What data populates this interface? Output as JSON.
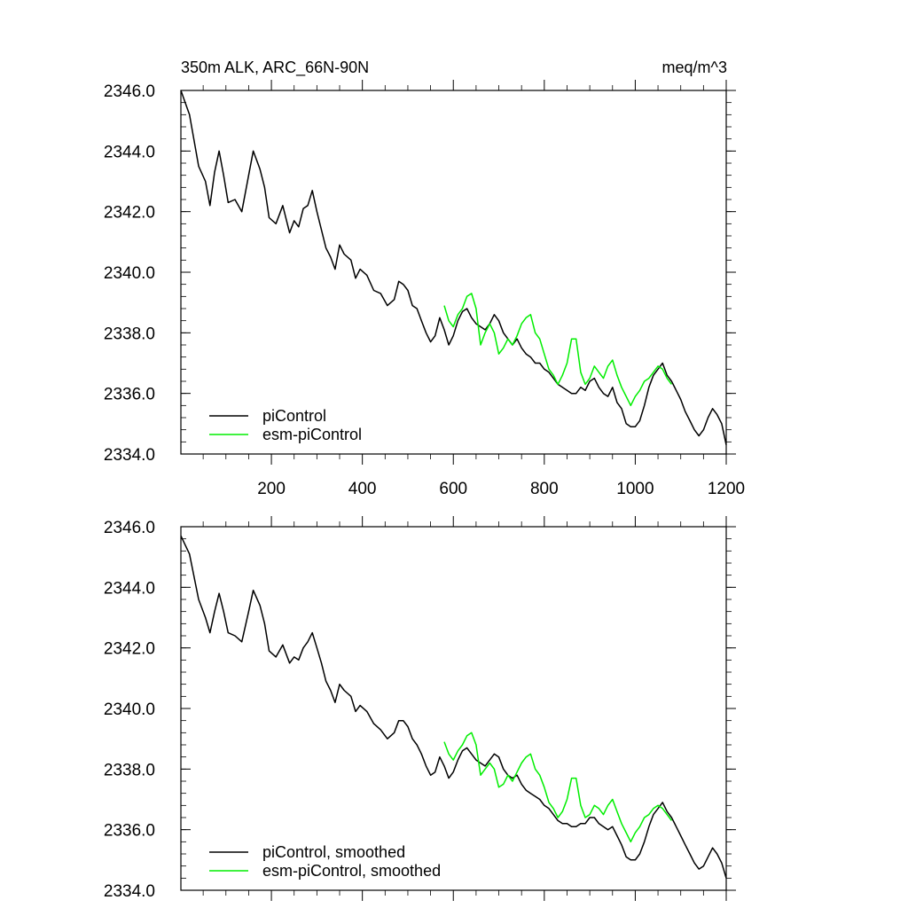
{
  "chart_data": [
    {
      "type": "line",
      "title": "350m ALK, ARC_66N-90N",
      "units": "meq/m^3",
      "xlim": [
        1,
        1200
      ],
      "ylim": [
        2334.0,
        2346.0
      ],
      "xticks": [
        200,
        400,
        600,
        800,
        1000,
        1200
      ],
      "xtick_labels": [
        "200",
        "400",
        "600",
        "800",
        "1000",
        "1200"
      ],
      "yticks": [
        2334,
        2336,
        2338,
        2340,
        2342,
        2344,
        2346
      ],
      "ytick_labels": [
        "2334.0",
        "2336.0",
        "2338.0",
        "2340.0",
        "2342.0",
        "2344.0",
        "2346.0"
      ],
      "legend_position": "bottom-left",
      "series": [
        {
          "name": "piControl",
          "color": "#000000",
          "x": [
            1,
            20,
            40,
            55,
            65,
            75,
            85,
            95,
            105,
            120,
            135,
            150,
            160,
            175,
            185,
            195,
            210,
            225,
            240,
            250,
            260,
            270,
            280,
            290,
            300,
            310,
            320,
            330,
            340,
            350,
            360,
            375,
            385,
            395,
            410,
            425,
            440,
            455,
            470,
            480,
            490,
            500,
            510,
            520,
            530,
            540,
            550,
            560,
            570,
            580,
            590,
            600,
            610,
            620,
            630,
            640,
            650,
            660,
            670,
            680,
            690,
            700,
            710,
            720,
            730,
            740,
            750,
            760,
            770,
            780,
            790,
            800,
            810,
            820,
            830,
            840,
            850,
            860,
            870,
            880,
            890,
            900,
            910,
            920,
            930,
            940,
            950,
            960,
            970,
            980,
            990,
            1000,
            1010,
            1020,
            1030,
            1040,
            1050,
            1060,
            1070,
            1080,
            1090,
            1100,
            1110,
            1120,
            1130,
            1140,
            1150,
            1160,
            1170,
            1180,
            1190,
            1200
          ],
          "y": [
            2346.0,
            2345.2,
            2343.5,
            2343.0,
            2342.2,
            2343.3,
            2344.0,
            2343.2,
            2342.3,
            2342.4,
            2342.0,
            2343.2,
            2344.0,
            2343.4,
            2342.8,
            2341.8,
            2341.6,
            2342.2,
            2341.3,
            2341.7,
            2341.5,
            2342.1,
            2342.2,
            2342.7,
            2342.0,
            2341.4,
            2340.8,
            2340.5,
            2340.1,
            2340.9,
            2340.6,
            2340.4,
            2339.8,
            2340.1,
            2339.9,
            2339.4,
            2339.3,
            2338.9,
            2339.1,
            2339.7,
            2339.6,
            2339.4,
            2338.9,
            2338.8,
            2338.4,
            2338.0,
            2337.7,
            2337.9,
            2338.5,
            2338.1,
            2337.6,
            2337.9,
            2338.4,
            2338.7,
            2338.8,
            2338.5,
            2338.3,
            2338.2,
            2338.1,
            2338.3,
            2338.6,
            2338.4,
            2338.0,
            2337.8,
            2337.6,
            2337.8,
            2337.5,
            2337.3,
            2337.2,
            2337.0,
            2337.0,
            2336.8,
            2336.7,
            2336.5,
            2336.3,
            2336.2,
            2336.1,
            2336.0,
            2336.0,
            2336.2,
            2336.1,
            2336.4,
            2336.5,
            2336.2,
            2336.0,
            2335.9,
            2336.2,
            2335.7,
            2335.5,
            2335.0,
            2334.9,
            2334.9,
            2335.1,
            2335.6,
            2336.2,
            2336.6,
            2336.8,
            2337.0,
            2336.6,
            2336.4,
            2336.1,
            2335.8,
            2335.4,
            2335.1,
            2334.8,
            2334.6,
            2334.8,
            2335.2,
            2335.5,
            2335.3,
            2335.0,
            2334.3
          ]
        },
        {
          "name": "esm-piControl",
          "color": "#00ee00",
          "x": [
            580,
            590,
            600,
            610,
            620,
            630,
            640,
            650,
            660,
            670,
            680,
            690,
            700,
            710,
            720,
            730,
            740,
            750,
            760,
            770,
            780,
            790,
            800,
            810,
            820,
            830,
            840,
            850,
            860,
            870,
            880,
            890,
            900,
            910,
            920,
            930,
            940,
            950,
            960,
            970,
            980,
            990,
            1000,
            1010,
            1020,
            1030,
            1040,
            1050,
            1060,
            1070,
            1080
          ],
          "y": [
            2338.9,
            2338.4,
            2338.2,
            2338.6,
            2338.8,
            2339.2,
            2339.3,
            2338.8,
            2337.6,
            2338.0,
            2338.3,
            2338.0,
            2337.3,
            2337.5,
            2337.8,
            2337.6,
            2337.9,
            2338.3,
            2338.5,
            2338.6,
            2338.0,
            2337.8,
            2337.3,
            2336.8,
            2336.6,
            2336.3,
            2336.6,
            2337.0,
            2337.8,
            2337.8,
            2336.7,
            2336.3,
            2336.5,
            2336.9,
            2336.7,
            2336.5,
            2336.9,
            2337.1,
            2336.6,
            2336.2,
            2335.9,
            2335.6,
            2335.9,
            2336.1,
            2336.4,
            2336.5,
            2336.7,
            2336.9,
            2336.8,
            2336.5,
            2336.3
          ]
        }
      ]
    },
    {
      "type": "line",
      "title": "",
      "xlim": [
        1,
        1200
      ],
      "ylim": [
        2334.0,
        2346.0
      ],
      "yticks": [
        2334,
        2336,
        2338,
        2340,
        2342,
        2344,
        2346
      ],
      "ytick_labels": [
        "2334.0",
        "2336.0",
        "2338.0",
        "2340.0",
        "2342.0",
        "2344.0",
        "2346.0"
      ],
      "legend_position": "bottom-left",
      "series": [
        {
          "name": "piControl, smoothed",
          "color": "#000000",
          "x": [
            1,
            20,
            40,
            55,
            65,
            75,
            85,
            95,
            105,
            120,
            135,
            150,
            160,
            175,
            185,
            195,
            210,
            225,
            240,
            250,
            260,
            270,
            280,
            290,
            300,
            310,
            320,
            330,
            340,
            350,
            360,
            375,
            385,
            395,
            410,
            425,
            440,
            455,
            470,
            480,
            490,
            500,
            510,
            520,
            530,
            540,
            550,
            560,
            570,
            580,
            590,
            600,
            610,
            620,
            630,
            640,
            650,
            660,
            670,
            680,
            690,
            700,
            710,
            720,
            730,
            740,
            750,
            760,
            770,
            780,
            790,
            800,
            810,
            820,
            830,
            840,
            850,
            860,
            870,
            880,
            890,
            900,
            910,
            920,
            930,
            940,
            950,
            960,
            970,
            980,
            990,
            1000,
            1010,
            1020,
            1030,
            1040,
            1050,
            1060,
            1070,
            1080,
            1090,
            1100,
            1110,
            1120,
            1130,
            1140,
            1150,
            1160,
            1170,
            1180,
            1190,
            1200
          ],
          "y": [
            2345.7,
            2345.1,
            2343.6,
            2343.0,
            2342.5,
            2343.2,
            2343.8,
            2343.2,
            2342.5,
            2342.4,
            2342.2,
            2343.2,
            2343.9,
            2343.4,
            2342.8,
            2341.9,
            2341.7,
            2342.1,
            2341.5,
            2341.7,
            2341.6,
            2342.0,
            2342.2,
            2342.5,
            2342.0,
            2341.5,
            2340.9,
            2340.6,
            2340.2,
            2340.8,
            2340.6,
            2340.4,
            2339.9,
            2340.1,
            2339.9,
            2339.5,
            2339.3,
            2339.0,
            2339.2,
            2339.6,
            2339.6,
            2339.4,
            2339.0,
            2338.8,
            2338.5,
            2338.1,
            2337.8,
            2337.9,
            2338.4,
            2338.1,
            2337.7,
            2337.9,
            2338.3,
            2338.6,
            2338.7,
            2338.5,
            2338.3,
            2338.2,
            2338.1,
            2338.3,
            2338.5,
            2338.4,
            2338.0,
            2337.8,
            2337.7,
            2337.8,
            2337.5,
            2337.3,
            2337.2,
            2337.1,
            2337.0,
            2336.8,
            2336.7,
            2336.5,
            2336.3,
            2336.2,
            2336.2,
            2336.1,
            2336.1,
            2336.2,
            2336.2,
            2336.4,
            2336.4,
            2336.2,
            2336.1,
            2336.0,
            2336.1,
            2335.8,
            2335.5,
            2335.1,
            2335.0,
            2335.0,
            2335.2,
            2335.6,
            2336.1,
            2336.5,
            2336.7,
            2336.9,
            2336.6,
            2336.4,
            2336.1,
            2335.8,
            2335.5,
            2335.2,
            2334.9,
            2334.7,
            2334.8,
            2335.1,
            2335.4,
            2335.2,
            2334.9,
            2334.4
          ]
        },
        {
          "name": "esm-piControl, smoothed",
          "color": "#00ee00",
          "x": [
            580,
            590,
            600,
            610,
            620,
            630,
            640,
            650,
            660,
            670,
            680,
            690,
            700,
            710,
            720,
            730,
            740,
            750,
            760,
            770,
            780,
            790,
            800,
            810,
            820,
            830,
            840,
            850,
            860,
            870,
            880,
            890,
            900,
            910,
            920,
            930,
            940,
            950,
            960,
            970,
            980,
            990,
            1000,
            1010,
            1020,
            1030,
            1040,
            1050,
            1060,
            1070,
            1080
          ],
          "y": [
            2338.9,
            2338.5,
            2338.3,
            2338.6,
            2338.8,
            2339.1,
            2339.2,
            2338.8,
            2337.8,
            2338.0,
            2338.2,
            2338.0,
            2337.4,
            2337.5,
            2337.8,
            2337.6,
            2337.9,
            2338.2,
            2338.4,
            2338.5,
            2338.0,
            2337.8,
            2337.4,
            2336.9,
            2336.7,
            2336.4,
            2336.6,
            2337.0,
            2337.7,
            2337.7,
            2336.8,
            2336.4,
            2336.5,
            2336.8,
            2336.7,
            2336.5,
            2336.8,
            2337.0,
            2336.6,
            2336.2,
            2335.9,
            2335.6,
            2335.9,
            2336.1,
            2336.4,
            2336.5,
            2336.7,
            2336.8,
            2336.7,
            2336.5,
            2336.3
          ]
        }
      ]
    }
  ]
}
